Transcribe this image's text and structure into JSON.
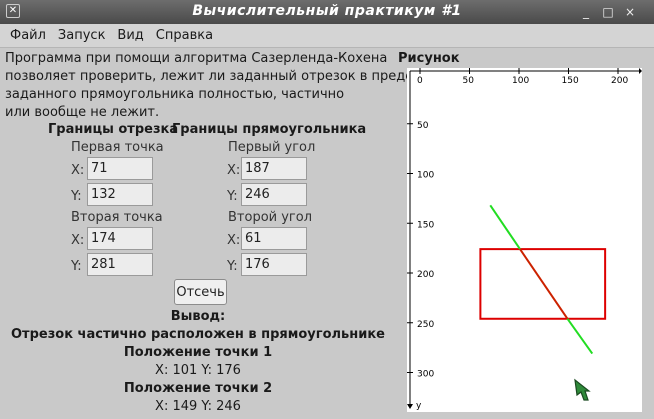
{
  "window": {
    "title": "Вычислительный практикум #1",
    "menu_icon": "window-menu-icon",
    "buttons": [
      "_",
      "□",
      "×"
    ]
  },
  "menu": [
    "Файл",
    "Запуск",
    "Вид",
    "Справка"
  ],
  "description": [
    "Программа при помощи алгоритма Сазерленда-Кохена",
    " позволяет проверить, лежит ли заданный отрезок в пределах",
    " заданного прямоугольника полностью, частично",
    "или вообще не лежит."
  ],
  "segment": {
    "header": "Границы отрезка",
    "p1_label": "Первая точка",
    "p2_label": "Вторая точка",
    "p1": {
      "x": "71",
      "y": "132"
    },
    "p2": {
      "x": "174",
      "y": "281"
    }
  },
  "rect": {
    "header": "Границы прямоугольника",
    "c1_label": "Первый угол",
    "c2_label": "Второй угол",
    "c1": {
      "x": "187",
      "y": "246"
    },
    "c2": {
      "x": "61",
      "y": "176"
    }
  },
  "axis_x_label": "X:",
  "axis_y_label": "Y:",
  "clip_button": "Отсечь",
  "output": {
    "title": "Вывод:",
    "result": "Отрезок частично расположен в прямоугольнике",
    "pt1_title": "Положение точки 1",
    "pt1_values": "X:  101   Y:  176",
    "pt2_title": "Положение точки 2",
    "pt2_values": "X:  149   Y:  246"
  },
  "figure": {
    "title": "Рисунок",
    "x_ticks": [
      "0",
      "50",
      "100",
      "150",
      "200"
    ],
    "y_ticks": [
      "50",
      "100",
      "150",
      "200",
      "250",
      "300"
    ],
    "y_axis_letter": "y",
    "colors": {
      "segment_outside": "#22dd22",
      "segment_inside": "#cc2200",
      "rect": "#dd0000"
    }
  }
}
